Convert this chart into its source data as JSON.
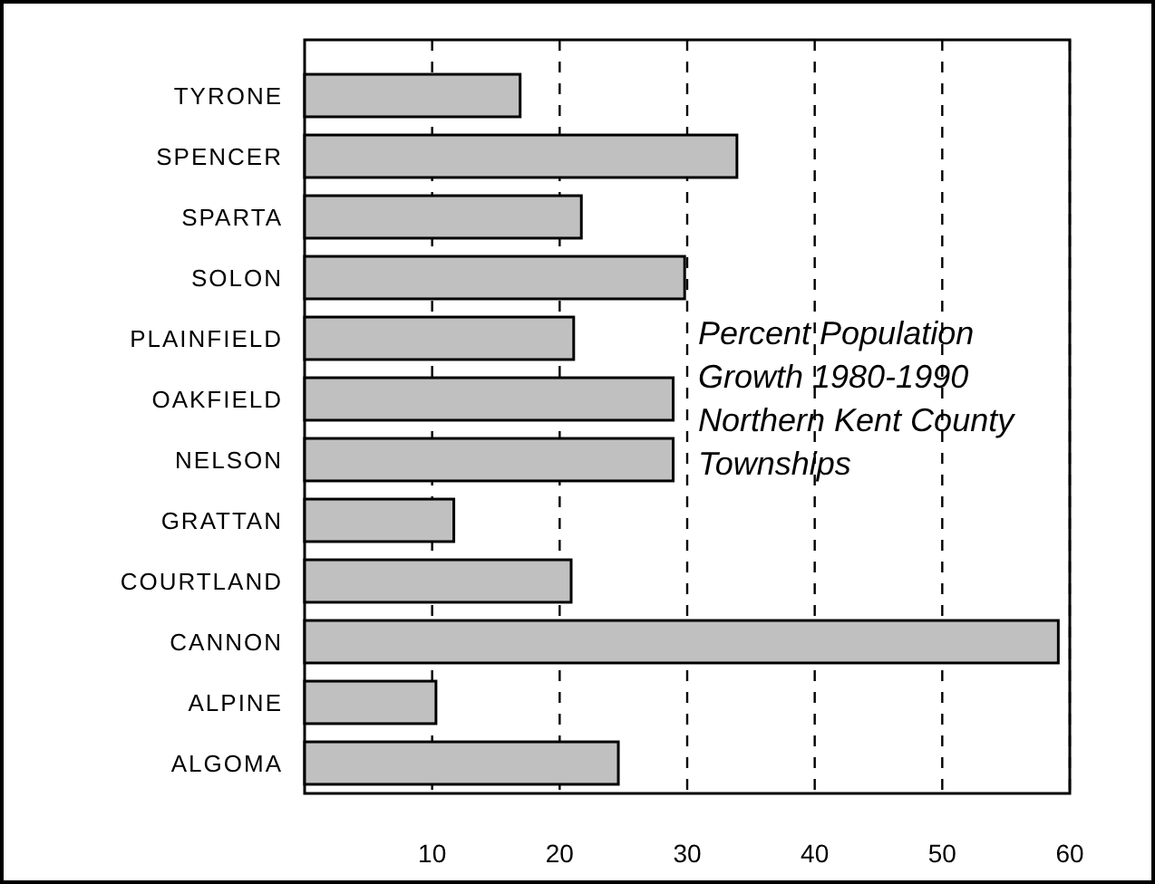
{
  "chart_data": {
    "type": "bar",
    "orientation": "horizontal",
    "title": "Percent Population Growth 1980-1990 Northern Kent County Townships",
    "categories": [
      "TYRONE",
      "SPENCER",
      "SPARTA",
      "SOLON",
      "PLAINFIELD",
      "OAKFIELD",
      "NELSON",
      "GRATTAN",
      "COURTLAND",
      "CANNON",
      "ALPINE",
      "ALGOMA"
    ],
    "values": [
      16.9,
      33.9,
      21.7,
      29.8,
      21.1,
      28.9,
      28.9,
      11.7,
      20.9,
      59.1,
      10.3,
      24.6
    ],
    "color": "#c0c0c0",
    "xlim": [
      0,
      60
    ],
    "xticks": [
      10,
      20,
      30,
      40,
      50,
      60
    ],
    "grid": "x"
  }
}
